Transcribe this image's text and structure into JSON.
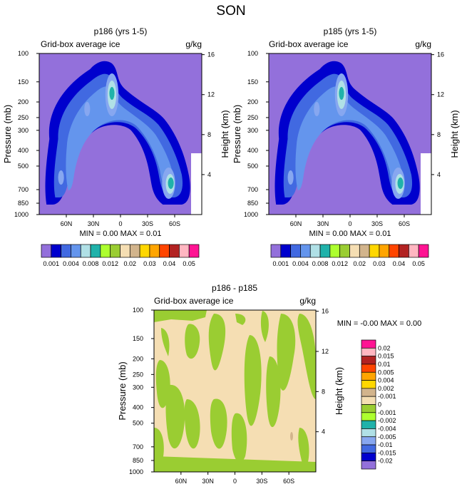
{
  "figure": {
    "title": "SON"
  },
  "colors": {
    "bg": "#9370db",
    "c1": "#0000cd",
    "c2": "#4169e1",
    "c3": "#6495ed",
    "c4": "#87a7f0",
    "c5": "#b0e0e6",
    "c6": "#20b2aa",
    "green": "#9acd32",
    "lightgreen": "#adff2f",
    "beige": "#f5deb3",
    "tan": "#d2b48c",
    "gold": "#ffd700",
    "orange": "#ffa500",
    "orangered": "#ff4500",
    "brown": "#b22222",
    "pink": "#ffb6c1",
    "magenta": "#ff1493"
  },
  "chart_data": [
    {
      "type": "filled-contour",
      "title": "p186 (yrs 1-5)",
      "left_label": "Grid-box average ice",
      "right_label": "g/kg",
      "ylabel": "Pressure (mb)",
      "ylabel_right": "Height (km)",
      "x_ticks": [
        "60N",
        "30N",
        "0",
        "30S",
        "60S"
      ],
      "x_tick_values": [
        60,
        30,
        0,
        -30,
        -60
      ],
      "xlim": [
        90,
        -90
      ],
      "y_ticks": [
        "100",
        "150",
        "200",
        "250",
        "300",
        "400",
        "500",
        "700",
        "850",
        "1000"
      ],
      "ylim_mb": [
        100,
        1000
      ],
      "y_ticks_right": [
        "16",
        "12",
        "8",
        "4"
      ],
      "min_max_text": "MIN =   0.00   MAX =   0.01",
      "colorbar_labels": [
        "0.001",
        "0.004",
        "0.008",
        "0.012",
        "0.02",
        "0.03",
        "0.04",
        "0.05"
      ],
      "colorbar_colors": [
        "#9370db",
        "#0000cd",
        "#4169e1",
        "#6495ed",
        "#b0e0e6",
        "#20b2aa",
        "#adff2f",
        "#9acd32",
        "#f5deb3",
        "#d2b48c",
        "#ffd700",
        "#ffa500",
        "#ff4500",
        "#b22222",
        "#ffb6c1",
        "#ff1493"
      ]
    },
    {
      "type": "filled-contour",
      "title": "p185 (yrs 1-5)",
      "left_label": "Grid-box average ice",
      "right_label": "g/kg",
      "ylabel": "Pressure (mb)",
      "ylabel_right": "Height (km)",
      "x_ticks": [
        "60N",
        "30N",
        "0",
        "30S",
        "60S"
      ],
      "x_tick_values": [
        60,
        30,
        0,
        -30,
        -60
      ],
      "xlim": [
        90,
        -90
      ],
      "y_ticks": [
        "100",
        "150",
        "200",
        "250",
        "300",
        "400",
        "500",
        "700",
        "850",
        "1000"
      ],
      "ylim_mb": [
        100,
        1000
      ],
      "y_ticks_right": [
        "16",
        "12",
        "8",
        "4"
      ],
      "min_max_text": "MIN =   0.00   MAX =   0.01",
      "colorbar_labels": [
        "0.001",
        "0.004",
        "0.008",
        "0.012",
        "0.02",
        "0.03",
        "0.04",
        "0.05"
      ],
      "colorbar_colors": [
        "#9370db",
        "#0000cd",
        "#4169e1",
        "#6495ed",
        "#b0e0e6",
        "#20b2aa",
        "#adff2f",
        "#9acd32",
        "#f5deb3",
        "#d2b48c",
        "#ffd700",
        "#ffa500",
        "#ff4500",
        "#b22222",
        "#ffb6c1",
        "#ff1493"
      ]
    },
    {
      "type": "filled-contour",
      "title": "p186 - p185",
      "left_label": "Grid-box average ice",
      "right_label": "g/kg",
      "ylabel": "Pressure (mb)",
      "ylabel_right": "Height (km)",
      "x_ticks": [
        "60N",
        "30N",
        "0",
        "30S",
        "60S"
      ],
      "x_tick_values": [
        60,
        30,
        0,
        -30,
        -60
      ],
      "xlim": [
        90,
        -90
      ],
      "y_ticks": [
        "100",
        "150",
        "200",
        "250",
        "300",
        "400",
        "500",
        "700",
        "850",
        "1000"
      ],
      "ylim_mb": [
        100,
        1000
      ],
      "y_ticks_right": [
        "16",
        "12",
        "8",
        "4"
      ],
      "min_max_text": "MIN =  -0.00   MAX =   0.00",
      "colorbar_labels": [
        "0.02",
        "0.015",
        "0.01",
        "0.005",
        "0.004",
        "0.002",
        "-0.001",
        "0",
        "-0.001",
        "-0.002",
        "-0.004",
        "-0.005",
        "-0.01",
        "-0.015",
        "-0.02"
      ],
      "colorbar_colors": [
        "#ff1493",
        "#ffb6c1",
        "#b22222",
        "#ff4500",
        "#ffa500",
        "#ffd700",
        "#d2b48c",
        "#f5deb3",
        "#9acd32",
        "#adff2f",
        "#20b2aa",
        "#b0e0e6",
        "#87a7f0",
        "#4169e1",
        "#0000cd",
        "#9370db"
      ]
    }
  ]
}
